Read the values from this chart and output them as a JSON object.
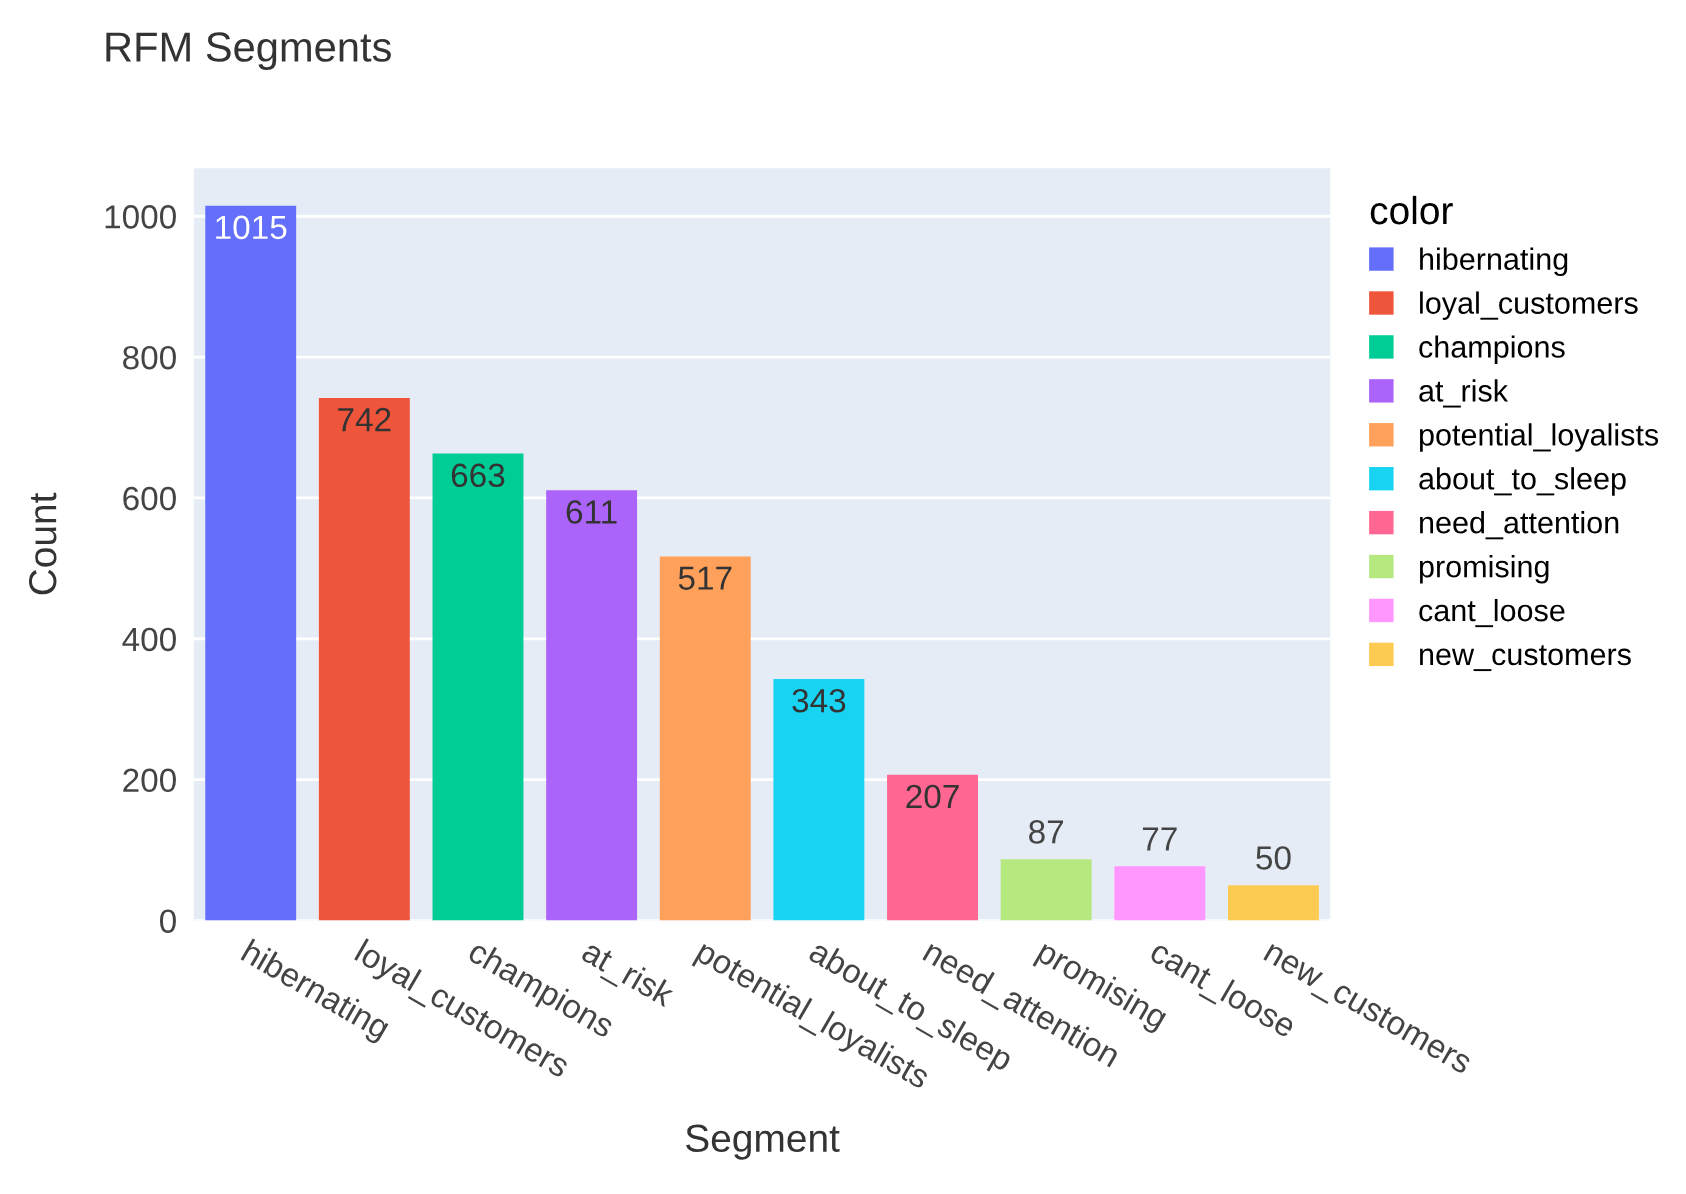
{
  "chart_data": {
    "type": "bar",
    "title": "RFM Segments",
    "xlabel": "Segment",
    "ylabel": "Count",
    "legend_title": "color",
    "categories": [
      "hibernating",
      "loyal_customers",
      "champions",
      "at_risk",
      "potential_loyalists",
      "about_to_sleep",
      "need_attention",
      "promising",
      "cant_loose",
      "new_customers"
    ],
    "series": [
      {
        "name": "hibernating",
        "color": "#636efa",
        "values": [
          1015,
          null,
          null,
          null,
          null,
          null,
          null,
          null,
          null,
          null
        ]
      },
      {
        "name": "loyal_customers",
        "color": "#ef553b",
        "values": [
          null,
          742,
          null,
          null,
          null,
          null,
          null,
          null,
          null,
          null
        ]
      },
      {
        "name": "champions",
        "color": "#00cc96",
        "values": [
          null,
          null,
          663,
          null,
          null,
          null,
          null,
          null,
          null,
          null
        ]
      },
      {
        "name": "at_risk",
        "color": "#ab63fa",
        "values": [
          null,
          null,
          null,
          611,
          null,
          null,
          null,
          null,
          null,
          null
        ]
      },
      {
        "name": "potential_loyalists",
        "color": "#ffa15a",
        "values": [
          null,
          null,
          null,
          null,
          517,
          null,
          null,
          null,
          null,
          null
        ]
      },
      {
        "name": "about_to_sleep",
        "color": "#19d3f3",
        "values": [
          null,
          null,
          null,
          null,
          null,
          343,
          null,
          null,
          null,
          null
        ]
      },
      {
        "name": "need_attention",
        "color": "#ff6692",
        "values": [
          null,
          null,
          null,
          null,
          null,
          null,
          207,
          null,
          null,
          null
        ]
      },
      {
        "name": "promising",
        "color": "#b6e880",
        "values": [
          null,
          null,
          null,
          null,
          null,
          null,
          null,
          87,
          null,
          null
        ]
      },
      {
        "name": "cant_loose",
        "color": "#ff97ff",
        "values": [
          null,
          null,
          null,
          null,
          null,
          null,
          null,
          null,
          77,
          null
        ]
      },
      {
        "name": "new_customers",
        "color": "#fecb52",
        "values": [
          null,
          null,
          null,
          null,
          null,
          null,
          null,
          null,
          null,
          50
        ]
      }
    ],
    "ylim": [
      0,
      1068
    ],
    "yticks": [
      0,
      200,
      400,
      600,
      800,
      1000
    ],
    "grid": "y",
    "legend": "right",
    "data_labels": true
  }
}
